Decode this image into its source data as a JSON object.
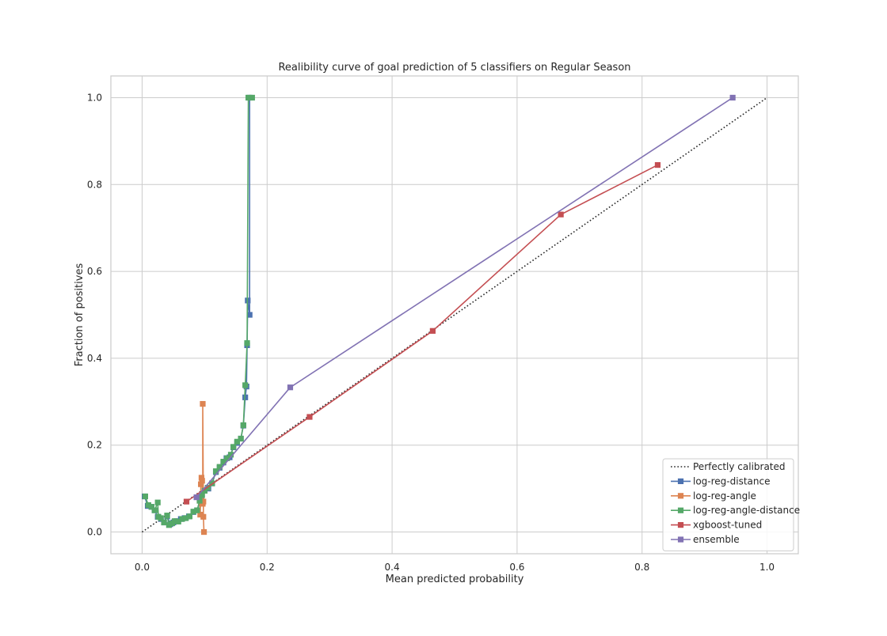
{
  "chart_data": {
    "type": "line",
    "title": "Realibility curve of goal prediction of 5 classifiers on Regular Season",
    "xlabel": "Mean predicted probability",
    "ylabel": "Fraction of positives",
    "xlim": [
      -0.05,
      1.05
    ],
    "ylim": [
      -0.05,
      1.05
    ],
    "xticks": [
      0.0,
      0.2,
      0.4,
      0.6,
      0.8,
      1.0
    ],
    "xtick_labels": [
      "0.0",
      "0.2",
      "0.4",
      "0.6",
      "0.8",
      "1.0"
    ],
    "yticks": [
      0.0,
      0.2,
      0.4,
      0.6,
      0.8,
      1.0
    ],
    "ytick_labels": [
      "0.0",
      "0.2",
      "0.4",
      "0.6",
      "0.8",
      "1.0"
    ],
    "grid": true,
    "legend_position": "lower-right",
    "series": [
      {
        "name": "Perfectly calibrated",
        "color": "#262626",
        "style": "dotted",
        "marker": "none",
        "points": [
          [
            0.0,
            0.0
          ],
          [
            1.0,
            1.0
          ]
        ]
      },
      {
        "name": "log-reg-distance",
        "color": "#4c72b0",
        "style": "solid",
        "marker": "square",
        "points": [
          [
            0.004,
            0.082
          ],
          [
            0.009,
            0.06
          ],
          [
            0.015,
            0.058
          ],
          [
            0.02,
            0.05
          ],
          [
            0.025,
            0.035
          ],
          [
            0.03,
            0.03
          ],
          [
            0.035,
            0.022
          ],
          [
            0.04,
            0.036
          ],
          [
            0.045,
            0.018
          ],
          [
            0.05,
            0.022
          ],
          [
            0.055,
            0.025
          ],
          [
            0.062,
            0.03
          ],
          [
            0.068,
            0.032
          ],
          [
            0.075,
            0.036
          ],
          [
            0.082,
            0.046
          ],
          [
            0.088,
            0.05
          ],
          [
            0.095,
            0.08
          ],
          [
            0.1,
            0.095
          ],
          [
            0.106,
            0.1
          ],
          [
            0.112,
            0.112
          ],
          [
            0.118,
            0.138
          ],
          [
            0.124,
            0.148
          ],
          [
            0.13,
            0.16
          ],
          [
            0.135,
            0.17
          ],
          [
            0.14,
            0.172
          ],
          [
            0.146,
            0.195
          ],
          [
            0.152,
            0.205
          ],
          [
            0.158,
            0.215
          ],
          [
            0.162,
            0.245
          ],
          [
            0.165,
            0.31
          ],
          [
            0.167,
            0.335
          ],
          [
            0.168,
            0.43
          ],
          [
            0.169,
            0.533
          ],
          [
            0.172,
            0.5
          ],
          [
            0.172,
            1.0
          ]
        ]
      },
      {
        "name": "log-reg-angle",
        "color": "#dd8452",
        "style": "solid",
        "marker": "square",
        "points": [
          [
            0.092,
            0.072
          ],
          [
            0.093,
            0.04
          ],
          [
            0.094,
            0.11
          ],
          [
            0.095,
            0.125
          ],
          [
            0.096,
            0.118
          ],
          [
            0.097,
            0.065
          ],
          [
            0.097,
            0.295
          ],
          [
            0.098,
            0.07
          ],
          [
            0.098,
            0.035
          ],
          [
            0.099,
            0.0
          ]
        ]
      },
      {
        "name": "log-reg-angle-distance",
        "color": "#55a868",
        "style": "solid",
        "marker": "square",
        "points": [
          [
            0.005,
            0.082
          ],
          [
            0.01,
            0.062
          ],
          [
            0.015,
            0.058
          ],
          [
            0.02,
            0.05
          ],
          [
            0.025,
            0.068
          ],
          [
            0.026,
            0.035
          ],
          [
            0.03,
            0.032
          ],
          [
            0.035,
            0.022
          ],
          [
            0.04,
            0.038
          ],
          [
            0.043,
            0.016
          ],
          [
            0.048,
            0.02
          ],
          [
            0.052,
            0.025
          ],
          [
            0.058,
            0.024
          ],
          [
            0.064,
            0.03
          ],
          [
            0.07,
            0.032
          ],
          [
            0.076,
            0.036
          ],
          [
            0.082,
            0.047
          ],
          [
            0.088,
            0.05
          ],
          [
            0.092,
            0.072
          ],
          [
            0.096,
            0.085
          ],
          [
            0.1,
            0.095
          ],
          [
            0.105,
            0.102
          ],
          [
            0.112,
            0.112
          ],
          [
            0.118,
            0.14
          ],
          [
            0.124,
            0.15
          ],
          [
            0.13,
            0.162
          ],
          [
            0.136,
            0.17
          ],
          [
            0.142,
            0.178
          ],
          [
            0.146,
            0.196
          ],
          [
            0.152,
            0.208
          ],
          [
            0.158,
            0.215
          ],
          [
            0.162,
            0.246
          ],
          [
            0.165,
            0.338
          ],
          [
            0.168,
            0.435
          ],
          [
            0.17,
            1.0
          ],
          [
            0.176,
            1.0
          ]
        ]
      },
      {
        "name": "xgboost-tuned",
        "color": "#c44e52",
        "style": "solid",
        "marker": "square",
        "points": [
          [
            0.071,
            0.07
          ],
          [
            0.268,
            0.265
          ],
          [
            0.465,
            0.463
          ],
          [
            0.67,
            0.731
          ],
          [
            0.825,
            0.845
          ]
        ]
      },
      {
        "name": "ensemble",
        "color": "#8172b3",
        "style": "solid",
        "marker": "square",
        "points": [
          [
            0.087,
            0.08
          ],
          [
            0.237,
            0.333
          ],
          [
            0.945,
            1.0
          ]
        ]
      }
    ]
  }
}
